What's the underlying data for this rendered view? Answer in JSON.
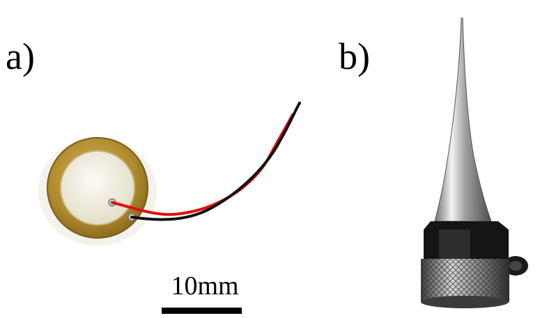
{
  "panels": {
    "a": {
      "label": "a)"
    },
    "b": {
      "label": "b)"
    }
  },
  "scale_bar": {
    "text": "10mm"
  },
  "icons": {
    "a": "piezo-disc-with-wires",
    "b": "tapered-horn-probe"
  },
  "colors": {
    "disc_brass": "#b08b2e",
    "disc_ceramic": "#f1efe6",
    "wire_red": "#e01010",
    "wire_black": "#111111",
    "probe_metal": "#b8b8b8",
    "probe_dark": "#151515"
  }
}
